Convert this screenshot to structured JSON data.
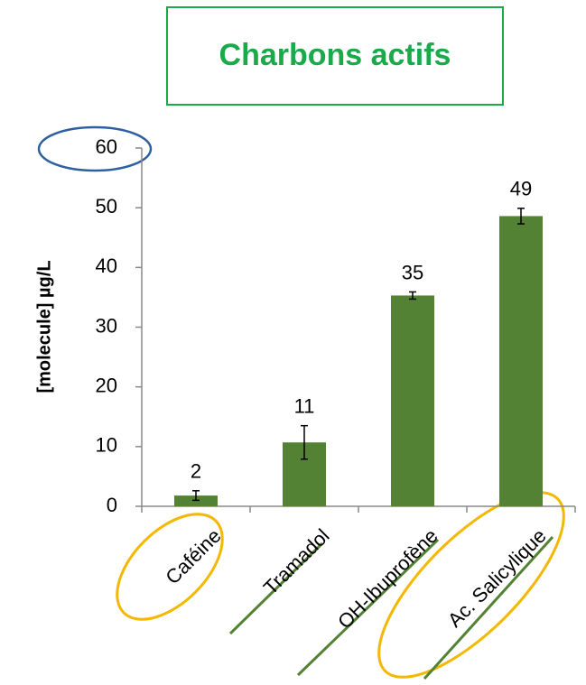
{
  "chart_data": {
    "type": "bar",
    "title": "Charbons actifs",
    "ylabel": "[molecule] µg/L",
    "categories": [
      "Caféine",
      "Tramadol",
      "OH-Ibuprofène",
      "Ac. Salicylique"
    ],
    "values": [
      1.8,
      10.7,
      35.3,
      48.6
    ],
    "value_labels": [
      "2",
      "11",
      "35",
      "49"
    ],
    "errors": [
      0.8,
      2.8,
      0.6,
      1.3
    ],
    "color": "#548235",
    "ylim": [
      0,
      60
    ],
    "yticks": [
      0,
      10,
      20,
      30,
      40,
      50,
      60
    ]
  }
}
